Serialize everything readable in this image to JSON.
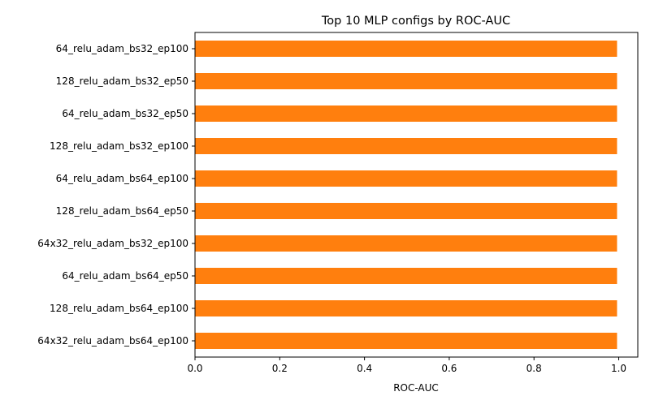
{
  "chart_data": {
    "type": "bar",
    "orientation": "horizontal",
    "title": "Top 10 MLP configs by ROC-AUC",
    "xlabel": "ROC-AUC",
    "ylabel": "",
    "categories": [
      "64_relu_adam_bs32_ep100",
      "128_relu_adam_bs32_ep50",
      "64_relu_adam_bs32_ep50",
      "128_relu_adam_bs32_ep100",
      "64_relu_adam_bs64_ep100",
      "128_relu_adam_bs64_ep50",
      "64x32_relu_adam_bs32_ep100",
      "64_relu_adam_bs64_ep50",
      "128_relu_adam_bs64_ep100",
      "64x32_relu_adam_bs64_ep100"
    ],
    "values": [
      0.996,
      0.996,
      0.996,
      0.996,
      0.996,
      0.996,
      0.996,
      0.996,
      0.996,
      0.996
    ],
    "xlim": [
      0,
      1.045
    ],
    "xticks": [
      "0.0",
      "0.2",
      "0.4",
      "0.6",
      "0.8",
      "1.0"
    ],
    "bar_color": "#ff7f0e",
    "grid": false,
    "legend": "none"
  }
}
